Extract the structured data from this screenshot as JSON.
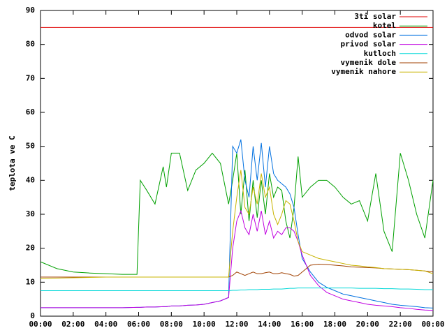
{
  "chart_data": {
    "type": "line",
    "ylabel": "teplota ve C",
    "x": [
      0,
      1,
      2,
      3,
      4,
      5,
      5.9,
      6.1,
      6.5,
      7,
      7.5,
      7.7,
      8,
      8.5,
      9,
      9.5,
      10,
      10.5,
      11,
      11.5,
      11.75,
      12,
      12.25,
      12.5,
      12.75,
      13,
      13.25,
      13.5,
      13.75,
      14,
      14.25,
      14.5,
      14.75,
      15,
      15.25,
      15.5,
      15.75,
      16,
      16.5,
      17,
      17.5,
      18,
      18.5,
      19,
      19.5,
      20,
      20.5,
      21,
      21.5,
      22,
      22.5,
      23,
      23.5,
      24
    ],
    "xlim": [
      0,
      24
    ],
    "xticks": [
      {
        "value": 0,
        "label": "00:00"
      },
      {
        "value": 2,
        "label": "02:00"
      },
      {
        "value": 4,
        "label": "04:00"
      },
      {
        "value": 6,
        "label": "06:00"
      },
      {
        "value": 8,
        "label": "08:00"
      },
      {
        "value": 10,
        "label": "10:00"
      },
      {
        "value": 12,
        "label": "12:00"
      },
      {
        "value": 14,
        "label": "14:00"
      },
      {
        "value": 16,
        "label": "16:00"
      },
      {
        "value": 18,
        "label": "18:00"
      },
      {
        "value": 20,
        "label": "20:00"
      },
      {
        "value": 22,
        "label": "22:00"
      },
      {
        "value": 24,
        "label": "00:00"
      }
    ],
    "ylim": [
      0,
      90
    ],
    "yticks": [
      0,
      10,
      20,
      30,
      40,
      50,
      60,
      70,
      80,
      90
    ],
    "legend": "top-right",
    "series": [
      {
        "name": "3ti solar",
        "color": "#e00000",
        "values": [
          85,
          85,
          85,
          85,
          85,
          85,
          85,
          85,
          85,
          85,
          85,
          85,
          85,
          85,
          85,
          85,
          85,
          85,
          85,
          85,
          85,
          85,
          85,
          85,
          85,
          85,
          85,
          85,
          85,
          85,
          85,
          85,
          85,
          85,
          85,
          85,
          85,
          85,
          85,
          85,
          85,
          85,
          85,
          85,
          85,
          85,
          85,
          85,
          85,
          85,
          85,
          85,
          85,
          85
        ]
      },
      {
        "name": "kotel",
        "color": "#00a000",
        "values": [
          16,
          14,
          13,
          12.7,
          12.5,
          12.3,
          12.3,
          40,
          37,
          33,
          44,
          38,
          48,
          48,
          37,
          43,
          45,
          48,
          45,
          33,
          40,
          48,
          30,
          43,
          28,
          40,
          29,
          40,
          30,
          42,
          35,
          38,
          37,
          28,
          23,
          32,
          47,
          35,
          38,
          40,
          40,
          38,
          35,
          33,
          34,
          28,
          42,
          25,
          19,
          48,
          40,
          30,
          23,
          40
        ]
      },
      {
        "name": "odvod solar",
        "color": "#0070e0",
        "values": [
          2.5,
          2.5,
          2.5,
          2.5,
          2.5,
          2.5,
          2.6,
          2.6,
          2.7,
          2.7,
          2.8,
          2.8,
          3,
          3,
          3.2,
          3.3,
          3.5,
          4,
          4.5,
          5.5,
          50,
          48,
          52,
          40,
          35,
          50,
          40,
          51,
          38,
          50,
          42,
          40,
          39,
          38,
          36,
          32,
          24,
          17,
          13,
          10,
          8.5,
          7.5,
          6.5,
          6,
          5.5,
          5,
          4.5,
          4,
          3.5,
          3.2,
          3,
          2.8,
          2.5,
          2.4
        ]
      },
      {
        "name": "privod solar",
        "color": "#c000e0",
        "values": [
          2.5,
          2.5,
          2.5,
          2.5,
          2.5,
          2.5,
          2.6,
          2.6,
          2.7,
          2.7,
          2.8,
          2.8,
          3,
          3,
          3.2,
          3.3,
          3.5,
          4,
          4.5,
          5.5,
          20,
          28,
          31,
          26,
          24,
          30,
          25,
          31,
          24,
          28,
          23,
          25,
          24,
          26,
          26,
          25,
          22,
          18,
          12,
          9,
          7,
          6,
          5,
          4.5,
          4,
          3.5,
          3.2,
          3,
          2.8,
          2.5,
          2.3,
          2,
          1.8,
          1.7
        ]
      },
      {
        "name": "kutloch",
        "color": "#00d8d8",
        "values": [
          7.5,
          7.5,
          7.5,
          7.5,
          7.5,
          7.5,
          7.5,
          7.5,
          7.5,
          7.5,
          7.5,
          7.5,
          7.5,
          7.5,
          7.5,
          7.5,
          7.5,
          7.5,
          7.5,
          7.5,
          7.6,
          7.6,
          7.7,
          7.7,
          7.8,
          7.8,
          7.8,
          7.9,
          7.9,
          7.9,
          8,
          8,
          8,
          8.1,
          8.2,
          8.2,
          8.3,
          8.3,
          8.3,
          8.3,
          8.3,
          8.3,
          8.3,
          8.3,
          8.2,
          8.2,
          8.2,
          8.1,
          8.1,
          8,
          8,
          7.9,
          7.8,
          7.8
        ]
      },
      {
        "name": "vymenik dole",
        "color": "#a04000",
        "values": [
          11.5,
          11.5,
          11.5,
          11.5,
          11.5,
          11.5,
          11.5,
          11.5,
          11.5,
          11.5,
          11.5,
          11.5,
          11.5,
          11.5,
          11.5,
          11.5,
          11.5,
          11.5,
          11.5,
          11.5,
          12,
          13,
          12.5,
          12,
          12.5,
          13,
          12.5,
          12.5,
          12.8,
          13,
          12.5,
          12.5,
          12.8,
          12.5,
          12.3,
          11.8,
          12,
          13,
          15,
          15.3,
          15.2,
          15,
          14.8,
          14.5,
          14.4,
          14.3,
          14.2,
          14,
          13.9,
          13.8,
          13.7,
          13.5,
          13.3,
          13
        ]
      },
      {
        "name": "vymenik nahore",
        "color": "#c8b400",
        "values": [
          11,
          11.2,
          11.3,
          11.4,
          11.5,
          11.5,
          11.5,
          11.5,
          11.5,
          11.5,
          11.5,
          11.5,
          11.5,
          11.5,
          11.5,
          11.5,
          11.5,
          11.5,
          11.5,
          11.5,
          25,
          35,
          43,
          32,
          30,
          38,
          33,
          42,
          35,
          38,
          30,
          27,
          30,
          34,
          33,
          28,
          22,
          19,
          18,
          17,
          16.5,
          16,
          15.5,
          15,
          14.8,
          14.5,
          14.3,
          14,
          13.9,
          13.8,
          13.7,
          13.5,
          13.3,
          12.5
        ]
      }
    ]
  }
}
